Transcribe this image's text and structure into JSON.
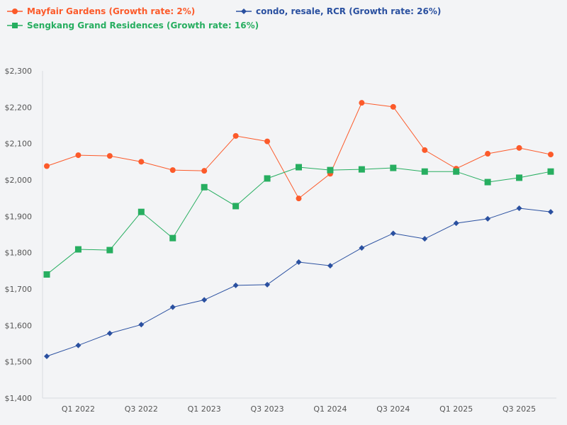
{
  "chart_data": {
    "type": "line",
    "title": "",
    "xlabel": "",
    "ylabel": "",
    "ylim": [
      1400,
      2300
    ],
    "yticks": [
      "$1,400",
      "$1,500",
      "$1,600",
      "$1,700",
      "$1,800",
      "$1,900",
      "$2,000",
      "$2,100",
      "$2,200",
      "$2,300"
    ],
    "ytick_values": [
      1400,
      1500,
      1600,
      1700,
      1800,
      1900,
      2000,
      2100,
      2200,
      2300
    ],
    "categories": [
      "Q4 2021",
      "Q1 2022",
      "Q2 2022",
      "Q3 2022",
      "Q4 2022",
      "Q1 2023",
      "Q2 2023",
      "Q3 2023",
      "Q4 2023",
      "Q1 2024",
      "Q2 2024",
      "Q3 2024",
      "Q4 2024",
      "Q1 2025",
      "Q2 2025",
      "Q3 2025",
      "Q4 2025"
    ],
    "xtick_labels": [
      "Q1 2022",
      "Q3 2022",
      "Q1 2023",
      "Q3 2023",
      "Q1 2024",
      "Q3 2024",
      "Q1 2025",
      "Q3 2025"
    ],
    "xtick_indices": [
      1,
      3,
      5,
      7,
      9,
      11,
      13,
      15
    ],
    "grid": false,
    "legend_placement": "top-left",
    "series": [
      {
        "name": "Mayfair Gardens (Growth rate: 2%)",
        "color": "#fc5a2a",
        "marker": "circle",
        "values": [
          2038,
          2068,
          2066,
          2050,
          2027,
          2025,
          2121,
          2106,
          1949,
          2017,
          2212,
          2201,
          2082,
          2031,
          2072,
          2088,
          2070
        ]
      },
      {
        "name": "Sengkang Grand Residences (Growth rate: 16%)",
        "color": "#27ae60",
        "marker": "square",
        "values": [
          1740,
          1809,
          1807,
          1912,
          1840,
          1980,
          1928,
          2004,
          2035,
          2027,
          2029,
          2033,
          2023,
          2023,
          1994,
          2006,
          2023
        ]
      },
      {
        "name": "condo, resale, RCR (Growth rate: 26%)",
        "color": "#2a50a0",
        "marker": "diamond",
        "values": [
          1515,
          1545,
          1578,
          1602,
          1650,
          1670,
          1710,
          1712,
          1774,
          1764,
          1813,
          1853,
          1838,
          1881,
          1893,
          1922,
          1912
        ]
      }
    ]
  }
}
